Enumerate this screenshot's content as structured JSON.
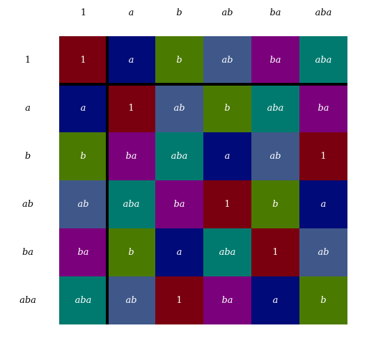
{
  "elements": [
    "1",
    "a",
    "b",
    "ab",
    "ba",
    "aba"
  ],
  "colors": {
    "1": "#7a0010",
    "a": "#000a78",
    "b": "#4b7a00",
    "ab": "#3f5889",
    "ba": "#7b007c",
    "aba": "#007a6f"
  },
  "table": [
    [
      "1",
      "a",
      "b",
      "ab",
      "ba",
      "aba"
    ],
    [
      "a",
      "1",
      "ab",
      "b",
      "aba",
      "ba"
    ],
    [
      "b",
      "ba",
      "aba",
      "a",
      "ab",
      "1"
    ],
    [
      "ab",
      "aba",
      "ba",
      "1",
      "b",
      "a"
    ],
    [
      "ba",
      "b",
      "a",
      "aba",
      "1",
      "ab"
    ],
    [
      "aba",
      "ab",
      "1",
      "ba",
      "a",
      "b"
    ]
  ]
}
